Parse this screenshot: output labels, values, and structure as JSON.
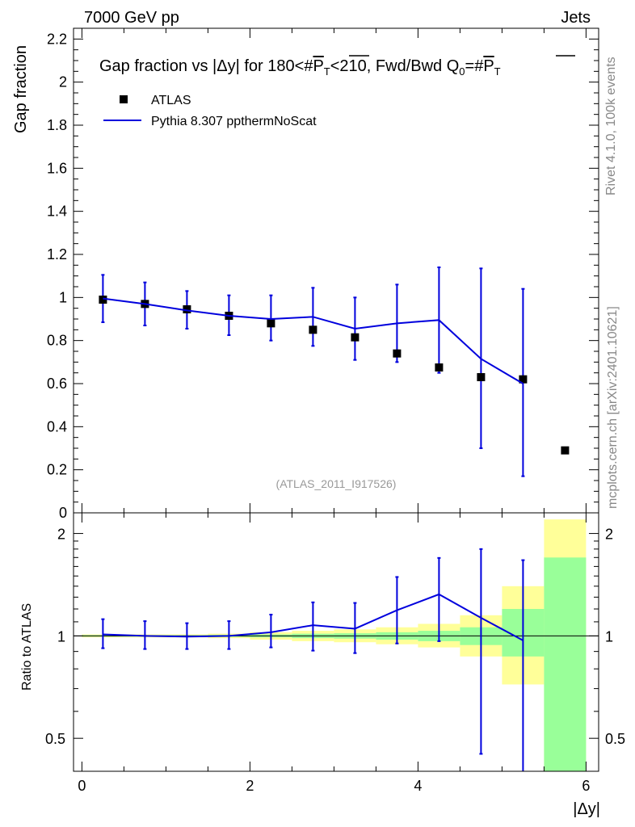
{
  "header": {
    "left": "7000 GeV pp",
    "right": "Jets"
  },
  "side_labels": {
    "rivet": "Rivet 4.1.0,  100k events",
    "mcplots": "mcplots.cern.ch [arXiv:2401.10621]"
  },
  "watermark": "(ATLAS_2011_I917526)",
  "colors": {
    "data": "#000000",
    "mc": "#0000dd",
    "band_inner": "#99ff99",
    "band_outer": "#ffff99",
    "watermark": "#999999",
    "side": "#888888"
  },
  "chart_data": [
    {
      "type": "scatter",
      "panel": "main",
      "title": "Gap fraction vs |Δy| for 180<#P̅T<210, Fwd/Bwd Q0=#P̅T",
      "title_parts": {
        "prefix": "Gap fraction vs |",
        "delta": "Δ",
        "mid1": "y| for 180<#",
        "p1": "P",
        "sub1": "T",
        "mid2": "<210, Fwd/Bwd Q",
        "sub0": "0",
        "mid3": "=#",
        "p2": "P",
        "sub2": "T"
      },
      "ylabel": "Gap fraction",
      "xlim": [
        -0.1,
        6.15
      ],
      "ylim": [
        0,
        2.25
      ],
      "yticks": [
        0,
        0.2,
        0.4,
        0.6,
        0.8,
        1,
        1.2,
        1.4,
        1.6,
        1.8,
        2,
        2.2
      ],
      "ytick_labels": [
        "0",
        "0.2",
        "0.4",
        "0.6",
        "0.8",
        "1",
        "1.2",
        "1.4",
        "1.6",
        "1.8",
        "2",
        "2.2"
      ],
      "legend": {
        "position": "top-left",
        "entries": [
          "ATLAS",
          "Pythia 8.307 ppthermNoScat"
        ]
      },
      "series": [
        {
          "name": "ATLAS",
          "style": "markers",
          "x": [
            0.25,
            0.75,
            1.25,
            1.75,
            2.25,
            2.75,
            3.25,
            3.75,
            4.25,
            4.75,
            5.25,
            5.75
          ],
          "y": [
            0.99,
            0.97,
            0.945,
            0.915,
            0.88,
            0.85,
            0.815,
            0.74,
            0.675,
            0.63,
            0.62,
            0.29
          ]
        },
        {
          "name": "Pythia 8.307 ppthermNoScat",
          "style": "line",
          "x": [
            0.25,
            0.75,
            1.25,
            1.75,
            2.25,
            2.75,
            3.25,
            3.75,
            4.25,
            4.75,
            5.25
          ],
          "y": [
            0.995,
            0.97,
            0.94,
            0.915,
            0.9,
            0.91,
            0.855,
            0.88,
            0.895,
            0.715,
            0.6
          ],
          "yerr_low": [
            0.11,
            0.1,
            0.085,
            0.09,
            0.1,
            0.135,
            0.145,
            0.18,
            0.245,
            0.415,
            0.43
          ],
          "yerr_high": [
            0.11,
            0.1,
            0.09,
            0.095,
            0.11,
            0.135,
            0.145,
            0.18,
            0.245,
            0.42,
            0.44
          ]
        }
      ]
    },
    {
      "type": "line",
      "panel": "ratio",
      "ylabel": "Ratio to ATLAS",
      "xlabel": "|Δy|",
      "xlim": [
        -0.1,
        6.15
      ],
      "ylim": [
        0.4,
        2.3
      ],
      "scale": "log",
      "yticks": [
        0.5,
        1,
        2
      ],
      "ytick_labels": [
        "0.5",
        "1",
        "2"
      ],
      "xticks": [
        0,
        2,
        4,
        6
      ],
      "xtick_labels": [
        "0",
        "2",
        "4",
        "6"
      ],
      "bands": {
        "x_edges": [
          0,
          0.5,
          1,
          1.5,
          2,
          2.5,
          3,
          3.5,
          4,
          4.5,
          5,
          5.5,
          6
        ],
        "inner_low": [
          0.995,
          0.995,
          0.995,
          0.993,
          0.99,
          0.985,
          0.982,
          0.975,
          0.965,
          0.94,
          0.87,
          0.4
        ],
        "inner_high": [
          1.005,
          1.005,
          1.005,
          1.007,
          1.01,
          1.015,
          1.018,
          1.025,
          1.035,
          1.06,
          1.2,
          1.7
        ],
        "outer_low": [
          0.99,
          0.99,
          0.99,
          0.985,
          0.975,
          0.965,
          0.958,
          0.945,
          0.925,
          0.87,
          0.72,
          0.4
        ],
        "outer_high": [
          1.01,
          1.01,
          1.01,
          1.015,
          1.025,
          1.035,
          1.045,
          1.06,
          1.085,
          1.15,
          1.4,
          2.2
        ]
      },
      "series": [
        {
          "name": "Pythia 8.307 ppthermNoScat",
          "x": [
            0.25,
            0.75,
            1.25,
            1.75,
            2.25,
            2.75,
            3.25,
            3.75,
            4.25,
            4.75,
            5.25
          ],
          "y": [
            1.01,
            1.0,
            0.995,
            1.0,
            1.025,
            1.075,
            1.05,
            1.19,
            1.325,
            1.13,
            0.97
          ],
          "yerr_low": [
            0.09,
            0.085,
            0.08,
            0.085,
            0.1,
            0.17,
            0.16,
            0.24,
            0.36,
            0.68,
            0.72
          ],
          "yerr_high": [
            0.11,
            0.105,
            0.095,
            0.105,
            0.13,
            0.18,
            0.2,
            0.3,
            0.37,
            0.67,
            0.7
          ]
        }
      ]
    }
  ]
}
